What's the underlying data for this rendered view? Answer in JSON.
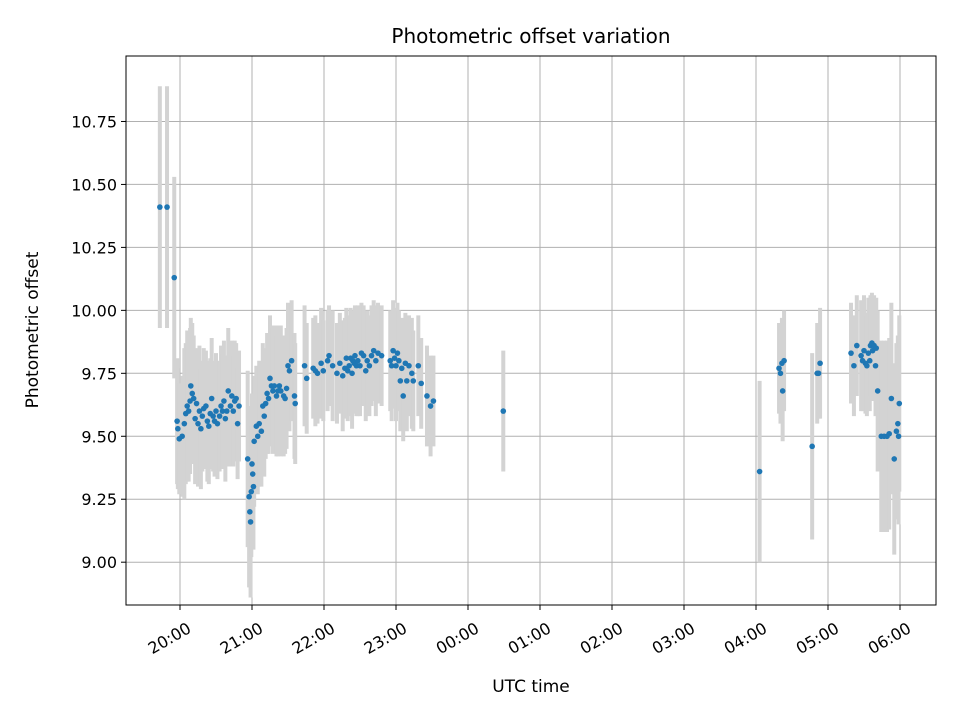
{
  "chart_data": {
    "type": "scatter",
    "title": "Photometric offset variation",
    "xlabel": "UTC time",
    "ylabel": "Photometric offset",
    "x_unit": "hours (UTC, continuing past midnight)",
    "xlim": [
      19.25,
      30.5
    ],
    "ylim": [
      8.83,
      11.01
    ],
    "grid": true,
    "x_ticks": [
      {
        "value": 20,
        "label": "20:00"
      },
      {
        "value": 21,
        "label": "21:00"
      },
      {
        "value": 22,
        "label": "22:00"
      },
      {
        "value": 23,
        "label": "23:00"
      },
      {
        "value": 24,
        "label": "00:00"
      },
      {
        "value": 25,
        "label": "01:00"
      },
      {
        "value": 26,
        "label": "02:00"
      },
      {
        "value": 27,
        "label": "03:00"
      },
      {
        "value": 28,
        "label": "04:00"
      },
      {
        "value": 29,
        "label": "05:00"
      },
      {
        "value": 30,
        "label": "06:00"
      }
    ],
    "y_ticks": [
      {
        "value": 9.0,
        "label": "9.00"
      },
      {
        "value": 9.25,
        "label": "9.25"
      },
      {
        "value": 9.5,
        "label": "9.50"
      },
      {
        "value": 9.75,
        "label": "9.75"
      },
      {
        "value": 10.0,
        "label": "10.00"
      },
      {
        "value": 10.25,
        "label": "10.25"
      },
      {
        "value": 10.5,
        "label": "10.50"
      },
      {
        "value": 10.75,
        "label": "10.75"
      }
    ],
    "colors": {
      "points": "#1f77b4",
      "error_bars": "#d3d3d3",
      "grid": "#b0b0b0"
    },
    "series": [
      {
        "columns": [
          "x_hour",
          "y",
          "y_err"
        ],
        "points": [
          [
            19.72,
            10.41,
            0.48
          ],
          [
            19.82,
            10.41,
            0.48
          ],
          [
            19.92,
            10.13,
            0.4
          ],
          [
            19.96,
            9.56,
            0.25
          ],
          [
            19.97,
            9.53,
            0.24
          ],
          [
            19.99,
            9.49,
            0.22
          ],
          [
            20.03,
            9.5,
            0.24
          ],
          [
            20.06,
            9.55,
            0.3
          ],
          [
            20.08,
            9.59,
            0.28
          ],
          [
            20.1,
            9.62,
            0.3
          ],
          [
            20.12,
            9.6,
            0.28
          ],
          [
            20.14,
            9.64,
            0.29
          ],
          [
            20.15,
            9.7,
            0.27
          ],
          [
            20.17,
            9.67,
            0.28
          ],
          [
            20.19,
            9.65,
            0.25
          ],
          [
            20.21,
            9.57,
            0.26
          ],
          [
            20.23,
            9.63,
            0.22
          ],
          [
            20.25,
            9.55,
            0.25
          ],
          [
            20.27,
            9.6,
            0.26
          ],
          [
            20.29,
            9.53,
            0.24
          ],
          [
            20.31,
            9.58,
            0.22
          ],
          [
            20.33,
            9.61,
            0.24
          ],
          [
            20.36,
            9.62,
            0.22
          ],
          [
            20.38,
            9.56,
            0.24
          ],
          [
            20.4,
            9.54,
            0.23
          ],
          [
            20.42,
            9.59,
            0.22
          ],
          [
            20.44,
            9.65,
            0.24
          ],
          [
            20.46,
            9.58,
            0.22
          ],
          [
            20.48,
            9.56,
            0.22
          ],
          [
            20.5,
            9.6,
            0.23
          ],
          [
            20.52,
            9.55,
            0.22
          ],
          [
            20.55,
            9.58,
            0.22
          ],
          [
            20.57,
            9.62,
            0.24
          ],
          [
            20.59,
            9.6,
            0.23
          ],
          [
            20.61,
            9.64,
            0.24
          ],
          [
            20.63,
            9.57,
            0.25
          ],
          [
            20.65,
            9.6,
            0.22
          ],
          [
            20.67,
            9.68,
            0.25
          ],
          [
            20.7,
            9.62,
            0.24
          ],
          [
            20.72,
            9.66,
            0.22
          ],
          [
            20.74,
            9.6,
            0.22
          ],
          [
            20.76,
            9.64,
            0.24
          ],
          [
            20.78,
            9.65,
            0.22
          ],
          [
            20.8,
            9.55,
            0.22
          ],
          [
            20.82,
            9.62,
            0.22
          ],
          [
            20.94,
            9.41,
            0.35
          ],
          [
            20.96,
            9.26,
            0.36
          ],
          [
            20.97,
            9.2,
            0.28
          ],
          [
            20.98,
            9.16,
            0.3
          ],
          [
            20.99,
            9.28,
            0.26
          ],
          [
            21.0,
            9.39,
            0.28
          ],
          [
            21.01,
            9.35,
            0.25
          ],
          [
            21.02,
            9.3,
            0.25
          ],
          [
            21.03,
            9.48,
            0.26
          ],
          [
            21.06,
            9.54,
            0.24
          ],
          [
            21.08,
            9.5,
            0.23
          ],
          [
            21.1,
            9.55,
            0.25
          ],
          [
            21.13,
            9.52,
            0.22
          ],
          [
            21.15,
            9.62,
            0.25
          ],
          [
            21.17,
            9.58,
            0.24
          ],
          [
            21.19,
            9.63,
            0.22
          ],
          [
            21.21,
            9.67,
            0.24
          ],
          [
            21.23,
            9.65,
            0.22
          ],
          [
            21.25,
            9.73,
            0.25
          ],
          [
            21.27,
            9.7,
            0.24
          ],
          [
            21.29,
            9.68,
            0.25
          ],
          [
            21.31,
            9.7,
            0.24
          ],
          [
            21.34,
            9.66,
            0.24
          ],
          [
            21.36,
            9.68,
            0.26
          ],
          [
            21.38,
            9.7,
            0.22
          ],
          [
            21.4,
            9.68,
            0.26
          ],
          [
            21.44,
            9.66,
            0.24
          ],
          [
            21.46,
            9.65,
            0.22
          ],
          [
            21.48,
            9.69,
            0.24
          ],
          [
            21.5,
            9.78,
            0.25
          ],
          [
            21.52,
            9.76,
            0.24
          ],
          [
            21.55,
            9.8,
            0.24
          ],
          [
            21.59,
            9.66,
            0.25
          ],
          [
            21.6,
            9.63,
            0.24
          ],
          [
            21.73,
            9.78,
            0.24
          ],
          [
            21.76,
            9.73,
            0.22
          ],
          [
            21.85,
            9.77,
            0.2
          ],
          [
            21.88,
            9.76,
            0.22
          ],
          [
            21.91,
            9.75,
            0.2
          ],
          [
            21.96,
            9.79,
            0.22
          ],
          [
            21.99,
            9.76,
            0.2
          ],
          [
            22.05,
            9.8,
            0.2
          ],
          [
            22.07,
            9.82,
            0.2
          ],
          [
            22.12,
            9.78,
            0.22
          ],
          [
            22.18,
            9.75,
            0.2
          ],
          [
            22.22,
            9.79,
            0.2
          ],
          [
            22.26,
            9.74,
            0.22
          ],
          [
            22.29,
            9.77,
            0.2
          ],
          [
            22.31,
            9.81,
            0.2
          ],
          [
            22.33,
            9.76,
            0.2
          ],
          [
            22.35,
            9.78,
            0.2
          ],
          [
            22.37,
            9.81,
            0.2
          ],
          [
            22.39,
            9.75,
            0.22
          ],
          [
            22.4,
            9.8,
            0.2
          ],
          [
            22.42,
            9.79,
            0.2
          ],
          [
            22.43,
            9.82,
            0.2
          ],
          [
            22.45,
            9.78,
            0.2
          ],
          [
            22.47,
            9.8,
            0.22
          ],
          [
            22.5,
            9.78,
            0.2
          ],
          [
            22.52,
            9.83,
            0.2
          ],
          [
            22.55,
            9.82,
            0.2
          ],
          [
            22.58,
            9.76,
            0.2
          ],
          [
            22.6,
            9.8,
            0.2
          ],
          [
            22.63,
            9.78,
            0.2
          ],
          [
            22.66,
            9.82,
            0.2
          ],
          [
            22.69,
            9.84,
            0.2
          ],
          [
            22.72,
            9.8,
            0.22
          ],
          [
            22.75,
            9.83,
            0.2
          ],
          [
            22.8,
            9.82,
            0.2
          ],
          [
            22.92,
            9.8,
            0.2
          ],
          [
            22.94,
            9.78,
            0.22
          ],
          [
            22.96,
            9.84,
            0.2
          ],
          [
            22.98,
            9.81,
            0.2
          ],
          [
            23.0,
            9.78,
            0.22
          ],
          [
            23.02,
            9.83,
            0.2
          ],
          [
            23.04,
            9.8,
            0.2
          ],
          [
            23.06,
            9.72,
            0.2
          ],
          [
            23.08,
            9.77,
            0.2
          ],
          [
            23.1,
            9.66,
            0.18
          ],
          [
            23.13,
            9.79,
            0.2
          ],
          [
            23.15,
            9.72,
            0.2
          ],
          [
            23.18,
            9.78,
            0.2
          ],
          [
            23.22,
            9.75,
            0.22
          ],
          [
            23.24,
            9.72,
            0.2
          ],
          [
            23.31,
            9.78,
            0.2
          ],
          [
            23.35,
            9.71,
            0.18
          ],
          [
            23.43,
            9.66,
            0.2
          ],
          [
            23.48,
            9.62,
            0.2
          ],
          [
            23.52,
            9.64,
            0.18
          ],
          [
            24.49,
            9.6,
            0.24
          ],
          [
            28.05,
            9.36,
            0.36
          ],
          [
            28.32,
            9.77,
            0.18
          ],
          [
            28.34,
            9.75,
            0.2
          ],
          [
            28.36,
            9.79,
            0.18
          ],
          [
            28.37,
            9.68,
            0.2
          ],
          [
            28.39,
            9.8,
            0.2
          ],
          [
            28.78,
            9.46,
            0.37
          ],
          [
            28.85,
            9.75,
            0.2
          ],
          [
            28.87,
            9.75,
            0.18
          ],
          [
            28.89,
            9.79,
            0.22
          ],
          [
            29.32,
            9.83,
            0.2
          ],
          [
            29.36,
            9.78,
            0.2
          ],
          [
            29.4,
            9.86,
            0.2
          ],
          [
            29.46,
            9.82,
            0.22
          ],
          [
            29.48,
            9.8,
            0.2
          ],
          [
            29.5,
            9.84,
            0.22
          ],
          [
            29.52,
            9.79,
            0.2
          ],
          [
            29.54,
            9.78,
            0.2
          ],
          [
            29.56,
            9.83,
            0.22
          ],
          [
            29.58,
            9.8,
            0.2
          ],
          [
            29.59,
            9.86,
            0.2
          ],
          [
            29.61,
            9.87,
            0.2
          ],
          [
            29.62,
            9.84,
            0.2
          ],
          [
            29.64,
            9.86,
            0.2
          ],
          [
            29.66,
            9.78,
            0.2
          ],
          [
            29.67,
            9.85,
            0.2
          ],
          [
            29.69,
            9.68,
            0.32
          ],
          [
            29.74,
            9.5,
            0.38
          ],
          [
            29.78,
            9.5,
            0.38
          ],
          [
            29.82,
            9.5,
            0.38
          ],
          [
            29.85,
            9.51,
            0.38
          ],
          [
            29.88,
            9.65,
            0.38
          ],
          [
            29.92,
            9.41,
            0.38
          ],
          [
            29.95,
            9.52,
            0.35
          ],
          [
            29.97,
            9.55,
            0.35
          ],
          [
            29.99,
            9.63,
            0.35
          ],
          [
            29.98,
            9.5,
            0.35
          ]
        ]
      }
    ]
  }
}
